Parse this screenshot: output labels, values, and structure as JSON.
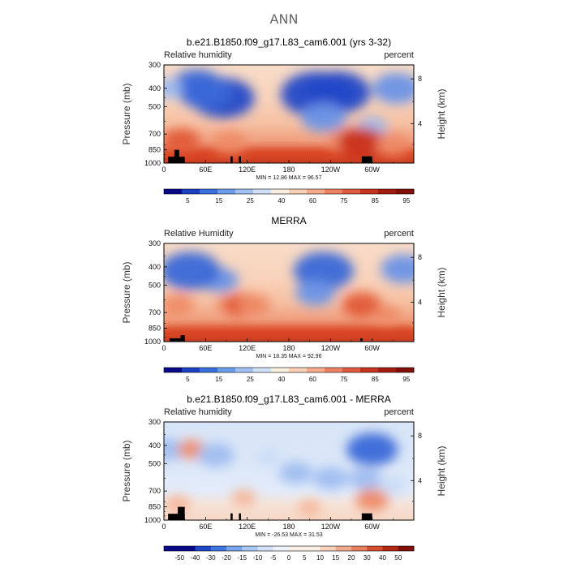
{
  "title": "ANN",
  "chart_data": [
    {
      "type": "heatmap",
      "title": "b.e21.B1850.f09_g17.L83_cam6.001 (yrs 3-32)",
      "left_label": "Relative humidity",
      "right_label": "percent",
      "ylabel": "Pressure (mb)",
      "y2label": "Height (km)",
      "y_ticks": [
        "300",
        "400",
        "500",
        "700",
        "850",
        "1000"
      ],
      "y2_ticks": [
        "8",
        "4"
      ],
      "x_ticks": [
        "0",
        "60E",
        "120E",
        "180",
        "120W",
        "60W"
      ],
      "min_max": "MIN =   12.86    MAX =   96.57",
      "colorbar_labels": [
        "5",
        "15",
        "25",
        "40",
        "60",
        "75",
        "85",
        "95"
      ],
      "kind": "abs",
      "features": [
        {
          "x": 85,
          "p": 450,
          "v": -32
        },
        {
          "x": 60,
          "p": 420,
          "v": -25
        },
        {
          "x": 48,
          "p": 390,
          "v": -25
        },
        {
          "x": 5,
          "p": 400,
          "v": -10
        },
        {
          "x": 220,
          "p": 430,
          "v": -38
        },
        {
          "x": 250,
          "p": 420,
          "v": -34
        },
        {
          "x": 230,
          "p": 570,
          "v": -20
        },
        {
          "x": 335,
          "p": 400,
          "v": -22
        },
        {
          "x": 300,
          "p": 640,
          "v": -10
        },
        {
          "x": 25,
          "p": 760,
          "v": 14
        },
        {
          "x": 95,
          "p": 780,
          "v": 12
        },
        {
          "x": 260,
          "p": 760,
          "v": 12
        },
        {
          "x": 285,
          "p": 780,
          "v": 22
        },
        {
          "x": 330,
          "p": 800,
          "v": 12
        }
      ],
      "land_mask": [
        {
          "x0": 6,
          "x1": 30,
          "p": 925
        },
        {
          "x0": 15,
          "x1": 22,
          "p": 850
        },
        {
          "x0": 96,
          "x1": 99,
          "p": 920
        },
        {
          "x0": 108,
          "x1": 111,
          "p": 920
        },
        {
          "x0": 285,
          "x1": 300,
          "p": 920
        }
      ]
    },
    {
      "type": "heatmap",
      "title": "MERRA",
      "left_label": "Relative Humidity",
      "right_label": "percent",
      "ylabel": "Pressure (mb)",
      "y2label": "Height (km)",
      "y_ticks": [
        "300",
        "400",
        "500",
        "700",
        "850",
        "1000"
      ],
      "y2_ticks": [
        "8",
        "4"
      ],
      "x_ticks": [
        "0",
        "60E",
        "120E",
        "180",
        "120W",
        "60W"
      ],
      "min_max": "MIN =   18.35    MAX =   92.96",
      "colorbar_labels": [
        "5",
        "15",
        "25",
        "40",
        "60",
        "75",
        "85",
        "95"
      ],
      "kind": "abs",
      "features": [
        {
          "x": 80,
          "p": 470,
          "v": -15
        },
        {
          "x": 38,
          "p": 420,
          "v": -30
        },
        {
          "x": 230,
          "p": 420,
          "v": -30
        },
        {
          "x": 218,
          "p": 550,
          "v": -16
        },
        {
          "x": 345,
          "p": 410,
          "v": -20
        },
        {
          "x": 20,
          "p": 640,
          "v": 12
        },
        {
          "x": 95,
          "p": 640,
          "v": 8
        },
        {
          "x": 112,
          "p": 640,
          "v": 14
        },
        {
          "x": 130,
          "p": 640,
          "v": 12
        },
        {
          "x": 285,
          "p": 640,
          "v": 16
        },
        {
          "x": 320,
          "p": 720,
          "v": 8
        }
      ],
      "land_mask": [
        {
          "x0": 8,
          "x1": 30,
          "p": 960
        },
        {
          "x0": 24,
          "x1": 30,
          "p": 925
        },
        {
          "x0": 283,
          "x1": 286,
          "p": 960
        }
      ]
    },
    {
      "type": "heatmap",
      "title": "b.e21.B1850.f09_g17.L83_cam6.001 - MERRA",
      "left_label": "Relative humidity",
      "right_label": "percent",
      "ylabel": "Pressure (mb)",
      "y2label": "Height (km)",
      "y_ticks": [
        "300",
        "400",
        "500",
        "700",
        "850",
        "1000"
      ],
      "y2_ticks": [
        "8",
        "4"
      ],
      "x_ticks": [
        "0",
        "60E",
        "120E",
        "180",
        "120W",
        "60W"
      ],
      "min_max": "MIN =   -26.53    MAX =   31.53",
      "colorbar_labels": [
        "-50",
        "-40",
        "-30",
        "-20",
        "-15",
        "-10",
        "-5",
        "0",
        "5",
        "10",
        "15",
        "20",
        "30",
        "40",
        "50"
      ],
      "kind": "diff",
      "features": [
        {
          "x": 5,
          "p": 420,
          "v": -12
        },
        {
          "x": 40,
          "p": 420,
          "v": 8
        },
        {
          "x": 75,
          "p": 450,
          "v": -14
        },
        {
          "x": 150,
          "p": 460,
          "v": -4
        },
        {
          "x": 190,
          "p": 560,
          "v": -12
        },
        {
          "x": 240,
          "p": 600,
          "v": -13
        },
        {
          "x": 300,
          "p": 420,
          "v": -24
        },
        {
          "x": 290,
          "p": 600,
          "v": -12
        },
        {
          "x": 330,
          "p": 650,
          "v": -8
        },
        {
          "x": 20,
          "p": 820,
          "v": 6
        },
        {
          "x": 210,
          "p": 860,
          "v": 5
        },
        {
          "x": 300,
          "p": 780,
          "v": 12
        },
        {
          "x": 115,
          "p": 760,
          "v": 6
        }
      ],
      "land_mask": [
        {
          "x0": 6,
          "x1": 30,
          "p": 925
        },
        {
          "x0": 20,
          "x1": 30,
          "p": 850
        },
        {
          "x0": 96,
          "x1": 99,
          "p": 920
        },
        {
          "x0": 108,
          "x1": 111,
          "p": 920
        },
        {
          "x0": 285,
          "x1": 300,
          "p": 920
        }
      ]
    }
  ]
}
